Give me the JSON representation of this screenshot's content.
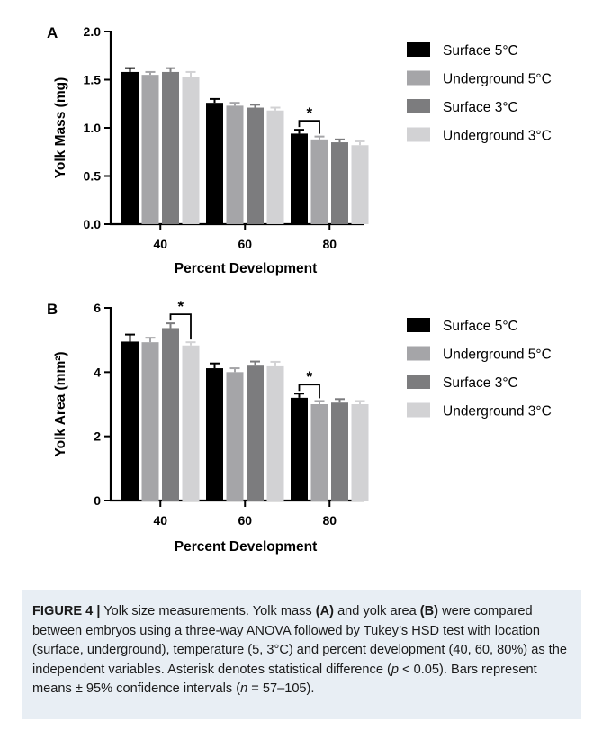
{
  "chart_data": [
    {
      "type": "bar",
      "panel": "A",
      "categories": [
        "40",
        "60",
        "80"
      ],
      "series": [
        {
          "name": "Surface 5°C",
          "color": "#000000",
          "values": [
            1.58,
            1.26,
            0.94
          ],
          "err": [
            0.04,
            0.04,
            0.04
          ]
        },
        {
          "name": "Underground 5°C",
          "color": "#a5a5a8",
          "values": [
            1.55,
            1.23,
            0.88
          ],
          "err": [
            0.03,
            0.03,
            0.03
          ]
        },
        {
          "name": "Surface 3°C",
          "color": "#7c7c7e",
          "values": [
            1.58,
            1.21,
            0.85
          ],
          "err": [
            0.04,
            0.03,
            0.03
          ]
        },
        {
          "name": "Underground 3°C",
          "color": "#d2d2d4",
          "values": [
            1.53,
            1.18,
            0.82
          ],
          "err": [
            0.05,
            0.03,
            0.04
          ]
        }
      ],
      "ylim": [
        0,
        2.0
      ],
      "yticks": [
        "0.0",
        "0.5",
        "1.0",
        "1.5",
        "2.0"
      ],
      "ylabel": "Yolk Mass (mg)",
      "xlabel": "Percent Development",
      "legend": "right",
      "significance": [
        {
          "category": "80",
          "from": "Surface 5°C",
          "to": "Underground 5°C",
          "label": "*"
        }
      ]
    },
    {
      "type": "bar",
      "panel": "B",
      "categories": [
        "40",
        "60",
        "80"
      ],
      "series": [
        {
          "name": "Surface 5°C",
          "color": "#000000",
          "values": [
            4.95,
            4.12,
            3.2
          ],
          "err": [
            0.22,
            0.15,
            0.13
          ]
        },
        {
          "name": "Underground 5°C",
          "color": "#a5a5a8",
          "values": [
            4.93,
            4.0,
            3.0
          ],
          "err": [
            0.14,
            0.12,
            0.1
          ]
        },
        {
          "name": "Surface 3°C",
          "color": "#7c7c7e",
          "values": [
            5.37,
            4.2,
            3.05
          ],
          "err": [
            0.15,
            0.13,
            0.11
          ]
        },
        {
          "name": "Underground 3°C",
          "color": "#d2d2d4",
          "values": [
            4.83,
            4.18,
            3.0
          ],
          "err": [
            0.1,
            0.14,
            0.1
          ]
        }
      ],
      "ylim": [
        0,
        6
      ],
      "yticks": [
        "0",
        "2",
        "4",
        "6"
      ],
      "ylabel": "Yolk Area (mm²)",
      "xlabel": "Percent Development",
      "legend": "right",
      "significance": [
        {
          "category": "40",
          "from": "Surface 3°C",
          "to": "Underground 3°C",
          "label": "*"
        },
        {
          "category": "80",
          "from": "Surface 5°C",
          "to": "Underground 5°C",
          "label": "*"
        }
      ]
    }
  ],
  "caption": {
    "figure_label": "FIGURE 4 |",
    "t1": " Yolk size measurements. Yolk mass ",
    "a": "(A)",
    "t2": " and yolk area ",
    "b": "(B)",
    "t3": " were compared between embryos using a three-way ANOVA followed by Tukey’s HSD test with location (surface, underground), temperature (5, 3°C) and percent development (40, 60, 80%) as the independent variables. Asterisk denotes statistical difference (",
    "p": "p",
    "t4": " < 0.05). Bars represent means ± 95% confidence intervals (",
    "n": "n",
    "t5": " = 57–105)."
  }
}
